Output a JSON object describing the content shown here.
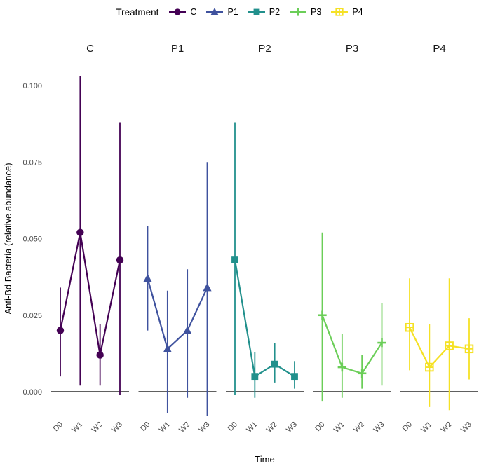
{
  "legend": {
    "title": "Treatment",
    "items": [
      {
        "label": "C",
        "shape": "circle",
        "color": "#440154"
      },
      {
        "label": "P1",
        "shape": "triangle",
        "color": "#3F529E"
      },
      {
        "label": "P2",
        "shape": "square",
        "color": "#21908C"
      },
      {
        "label": "P3",
        "shape": "plus",
        "color": "#6BCE58"
      },
      {
        "label": "P4",
        "shape": "square-plus",
        "color": "#F5E125"
      }
    ]
  },
  "chart_data": {
    "type": "line",
    "title": "",
    "xlabel": "Time",
    "ylabel": "Anti-Bd Bacteria (relative abundance)",
    "categories": [
      "D0",
      "W1",
      "W2",
      "W3"
    ],
    "yticks": [
      0,
      0.025,
      0.05,
      0.075,
      0.1
    ],
    "ytick_labels": [
      "0.000",
      "0.025",
      "0.050",
      "0.075",
      "0.100"
    ],
    "ylim": [
      -0.01,
      0.105
    ],
    "grid": false,
    "legend_position": "top",
    "zero_line": true,
    "facets": [
      {
        "name": "C",
        "shape": "circle",
        "color": "#440154",
        "mean": [
          0.02,
          0.052,
          0.012,
          0.043
        ],
        "lo": [
          0.005,
          0.002,
          0.002,
          -0.001
        ],
        "hi": [
          0.034,
          0.103,
          0.022,
          0.088
        ]
      },
      {
        "name": "P1",
        "shape": "triangle",
        "color": "#3F529E",
        "mean": [
          0.037,
          0.014,
          0.02,
          0.034
        ],
        "lo": [
          0.02,
          -0.007,
          -0.002,
          -0.008
        ],
        "hi": [
          0.054,
          0.033,
          0.04,
          0.075
        ]
      },
      {
        "name": "P2",
        "shape": "square",
        "color": "#21908C",
        "mean": [
          0.043,
          0.005,
          0.009,
          0.005
        ],
        "lo": [
          -0.001,
          -0.002,
          0.003,
          0.001
        ],
        "hi": [
          0.088,
          0.013,
          0.016,
          0.01
        ]
      },
      {
        "name": "P3",
        "shape": "plus",
        "color": "#6BCE58",
        "mean": [
          0.025,
          0.008,
          0.006,
          0.016
        ],
        "lo": [
          -0.003,
          -0.002,
          0.001,
          0.002
        ],
        "hi": [
          0.052,
          0.019,
          0.012,
          0.029
        ]
      },
      {
        "name": "P4",
        "shape": "square-plus",
        "color": "#F5E125",
        "mean": [
          0.021,
          0.008,
          0.015,
          0.014
        ],
        "lo": [
          0.007,
          -0.005,
          -0.006,
          0.004
        ],
        "hi": [
          0.037,
          0.022,
          0.037,
          0.024
        ]
      }
    ]
  }
}
